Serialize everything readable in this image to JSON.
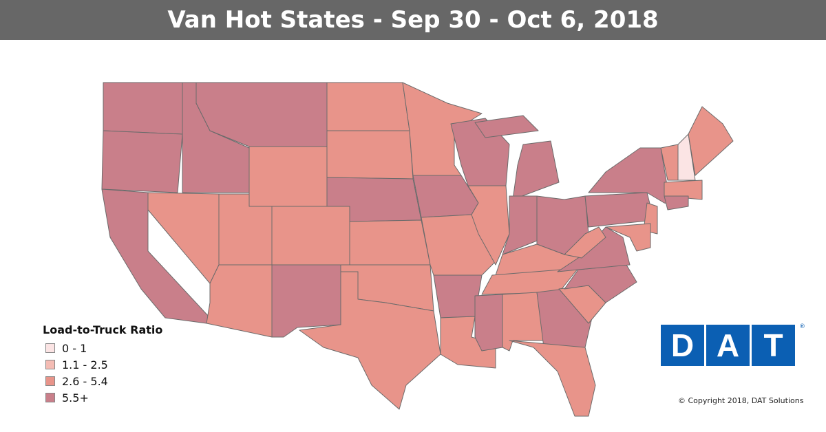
{
  "title": "Van Hot States - Sep 30 - Oct 6, 2018",
  "legend": {
    "title": "Load-to-Truck Ratio",
    "items": [
      {
        "label": "0 - 1",
        "color": "#fbe4e4"
      },
      {
        "label": "1.1 - 2.5",
        "color": "#f4bcb4"
      },
      {
        "label": "2.6 - 5.4",
        "color": "#e8948a"
      },
      {
        "label": "5.5+",
        "color": "#c97f8a"
      }
    ]
  },
  "logo": [
    "D",
    "A",
    "T"
  ],
  "copyright": "© Copyright 2018, DAT Solutions"
}
